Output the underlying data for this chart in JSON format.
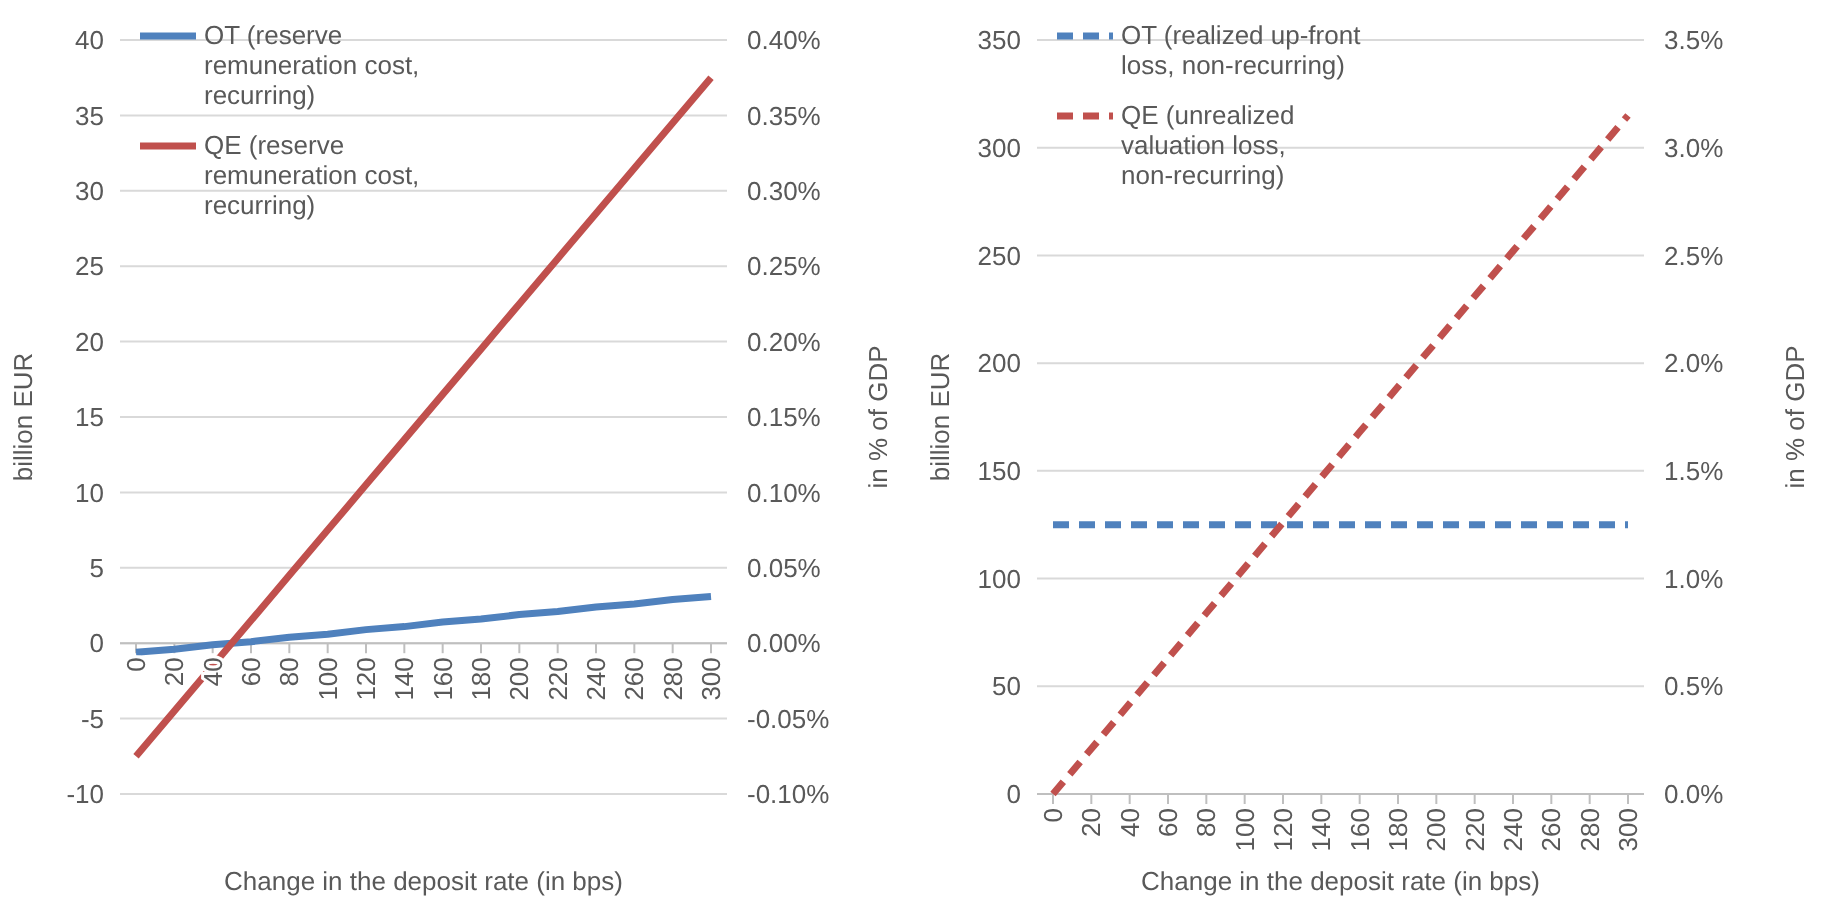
{
  "chart_data": [
    {
      "type": "line",
      "xlabel": "Change in the deposit rate (in bps)",
      "ylabel": "billion EUR",
      "y2label": "in % of GDP",
      "categories": [
        "0",
        "20",
        "40",
        "60",
        "80",
        "100",
        "120",
        "140",
        "160",
        "180",
        "200",
        "220",
        "240",
        "260",
        "280",
        "300"
      ],
      "series": [
        {
          "name": "OT (reserve remuneration cost, recurring)",
          "color": "#4f81bd",
          "line_style": "solid",
          "values": [
            -0.6,
            -0.4,
            -0.1,
            0.1,
            0.4,
            0.6,
            0.9,
            1.1,
            1.4,
            1.6,
            1.9,
            2.1,
            2.4,
            2.6,
            2.9,
            3.1
          ]
        },
        {
          "name": "QE (reserve remuneration cost, recurring)",
          "color": "#c0504d",
          "line_style": "solid",
          "values": [
            -7.5,
            -4.5,
            -1.5,
            1.5,
            4.5,
            7.5,
            10.5,
            13.5,
            16.5,
            19.5,
            22.5,
            25.5,
            28.5,
            31.5,
            34.5,
            37.5
          ]
        }
      ],
      "ylim": [
        -10,
        40
      ],
      "yticks": [
        -10,
        -5,
        0,
        5,
        10,
        15,
        20,
        25,
        30,
        35,
        40
      ],
      "y2lim": [
        -0.1,
        0.4
      ],
      "y2ticks": [
        {
          "value": -0.1,
          "label": "-0.10%"
        },
        {
          "value": -0.05,
          "label": "-0.05%"
        },
        {
          "value": 0,
          "label": "0.00%"
        },
        {
          "value": 0.05,
          "label": "0.05%"
        },
        {
          "value": 0.1,
          "label": "0.10%"
        },
        {
          "value": 0.15,
          "label": "0.15%"
        },
        {
          "value": 0.2,
          "label": "0.20%"
        },
        {
          "value": 0.25,
          "label": "0.25%"
        },
        {
          "value": 0.3,
          "label": "0.30%"
        },
        {
          "value": 0.35,
          "label": "0.35%"
        },
        {
          "value": 0.4,
          "label": "0.40%"
        }
      ],
      "grid": "y",
      "legend": "top left",
      "marker": "none"
    },
    {
      "type": "line",
      "xlabel": "Change in the deposit rate (in bps)",
      "ylabel": "billion EUR",
      "y2label": "in % of GDP",
      "categories": [
        "0",
        "20",
        "40",
        "60",
        "80",
        "100",
        "120",
        "140",
        "160",
        "180",
        "200",
        "220",
        "240",
        "260",
        "280",
        "300"
      ],
      "series": [
        {
          "name": "OT (realized up-front loss, non-recurring)",
          "color": "#4f81bd",
          "line_style": "dashed",
          "values": [
            125,
            125,
            125,
            125,
            125,
            125,
            125,
            125,
            125,
            125,
            125,
            125,
            125,
            125,
            125,
            125
          ]
        },
        {
          "name": "QE (unrealized valuation loss, non-recurring)",
          "color": "#c0504d",
          "line_style": "dashed",
          "values": [
            0,
            21,
            42,
            63,
            84,
            105,
            126,
            147,
            168,
            189,
            210,
            231,
            252,
            273,
            294,
            315
          ]
        }
      ],
      "ylim": [
        0,
        350
      ],
      "yticks": [
        0,
        50,
        100,
        150,
        200,
        250,
        300,
        350
      ],
      "y2lim": [
        0,
        3.5
      ],
      "y2ticks": [
        {
          "value": 0,
          "label": "0.0%"
        },
        {
          "value": 0.5,
          "label": "0.5%"
        },
        {
          "value": 1,
          "label": "1.0%"
        },
        {
          "value": 1.5,
          "label": "1.5%"
        },
        {
          "value": 2,
          "label": "2.0%"
        },
        {
          "value": 2.5,
          "label": "2.5%"
        },
        {
          "value": 3,
          "label": "3.0%"
        },
        {
          "value": 3.5,
          "label": "3.5%"
        }
      ],
      "grid": "y",
      "legend": "top left",
      "marker": "none"
    }
  ]
}
